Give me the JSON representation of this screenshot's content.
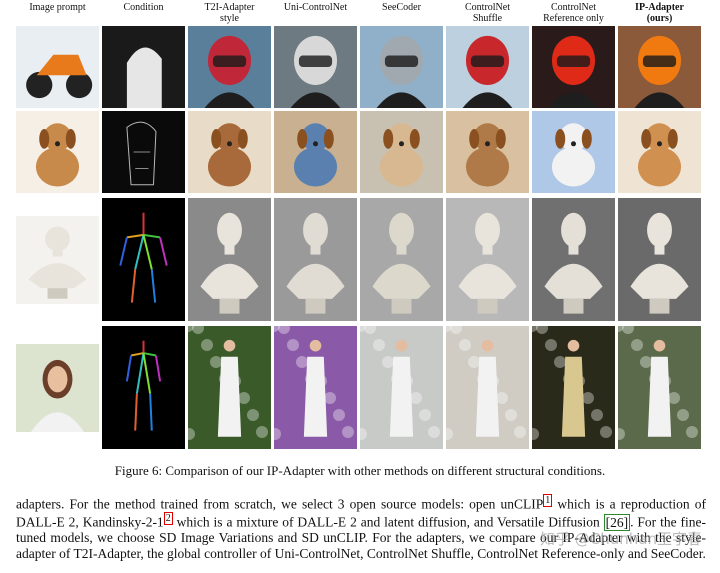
{
  "columns": [
    {
      "key": "prompt",
      "label": "Image prompt"
    },
    {
      "key": "condition",
      "label": "Condition"
    },
    {
      "key": "t2i",
      "label": "T2I-Adapter\nstyle"
    },
    {
      "key": "uni",
      "label": "Uni-ControlNet"
    },
    {
      "key": "seecoder",
      "label": "SeeCoder"
    },
    {
      "key": "shuffle",
      "label": "ControlNet\nShuffle"
    },
    {
      "key": "reference",
      "label": "ControlNet\nReference only"
    },
    {
      "key": "ip",
      "label": "IP-Adapter\n(ours)"
    }
  ],
  "rows": [
    {
      "key": "motorcycle-helmet",
      "colors": [
        "#e8eef2",
        "#1a1a1a",
        "#5a7f9a",
        "#6d7a82",
        "#8fb0c8",
        "#bcd0e0",
        "#2b1a1a",
        "#8a5a3a"
      ],
      "accents": [
        "#e87a1c",
        "#f2f2f2",
        "#c0283a",
        "#d8d8d8",
        "#a0a8b0",
        "#c8282c",
        "#e02a18",
        "#f07a10"
      ]
    },
    {
      "key": "dog",
      "colors": [
        "#f6efe6",
        "#0a0a0a",
        "#e8dcc8",
        "#c8b090",
        "#c8c0b0",
        "#d8c0a0",
        "#b0c8e8",
        "#efe4d4"
      ],
      "accents": [
        "#c88a4a",
        "#b8b8b8",
        "#a86a3a",
        "#5a80b0",
        "#d8b890",
        "#b07a48",
        "#f2f2f2",
        "#d09050"
      ]
    },
    {
      "key": "statue",
      "colors": [
        "#f4f2ee",
        "#000000",
        "#8a8a8a",
        "#9a9a9a",
        "#a8a8a8",
        "#b8b8b8",
        "#707070",
        "#6a6a6a"
      ],
      "accents": [
        "#e8e4dc",
        "#2a9a2a",
        "#e8e4dc",
        "#e0dcd4",
        "#dcd8cc",
        "#e8e4dc",
        "#e4e0d8",
        "#e8e4dc"
      ]
    },
    {
      "key": "woman",
      "colors": [
        "#dce4d0",
        "#000000",
        "#3a5a2a",
        "#8a5aa8",
        "#c8cac8",
        "#d0ccc4",
        "#2a2a1a",
        "#5a6a4a"
      ],
      "accents": [
        "#7a4a30",
        "#2aa02a",
        "#f2f2f2",
        "#f2f2f2",
        "#f2f2f2",
        "#f2f2f2",
        "#d8c890",
        "#f2f2f2"
      ]
    }
  ],
  "caption": "Figure 6: Comparison of our IP-Adapter with other methods on different structural conditions.",
  "paragraph": {
    "part1": "adapters. For the method trained from scratch, we select 3 open source models: open unCLIP",
    "fn1": "1",
    "part2": " which is a reproduction of DALL-E 2, Kandinsky-2-1",
    "fn2": "2",
    "part3": " which is a mixture of DALL-E 2 and latent diffusion, and Versatile Diffusion ",
    "cite": "[26]",
    "part4": ". For the fine-tuned models, we choose SD Image Variations and SD unCLIP. For the adapters, we compare our IP-Adapter with the style-adapter of T2I-Adapter, the global controller of Uni-ControlNet, ControlNet Shuffle, ControlNet Reference-only and SeeCoder."
  },
  "watermark": "知乎 @Chunhan王宇春"
}
